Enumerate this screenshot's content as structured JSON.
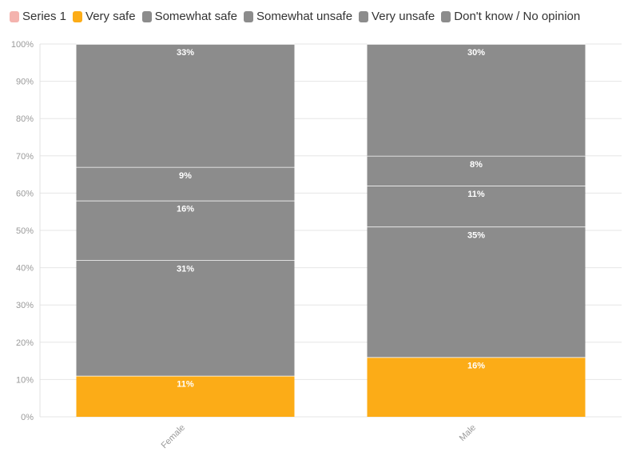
{
  "chart_data": {
    "type": "bar",
    "stacked": true,
    "categories": [
      "Female",
      "Male"
    ],
    "series": [
      {
        "name": "Series 1",
        "color": "#f4b3ae",
        "values": [
          0,
          0
        ]
      },
      {
        "name": "Very safe",
        "color": "#fcac17",
        "values": [
          11,
          16
        ]
      },
      {
        "name": "Somewhat safe",
        "color": "#8c8c8c",
        "values": [
          31,
          35
        ]
      },
      {
        "name": "Somewhat unsafe",
        "color": "#8c8c8c",
        "values": [
          16,
          11
        ]
      },
      {
        "name": "Very unsafe",
        "color": "#8c8c8c",
        "values": [
          9,
          8
        ]
      },
      {
        "name": "Don't know / No opinion",
        "color": "#8c8c8c",
        "values": [
          33,
          30
        ]
      }
    ],
    "data_labels": [
      [
        "",
        ""
      ],
      [
        "11%",
        "16%"
      ],
      [
        "31%",
        "35%"
      ],
      [
        "16%",
        "11%"
      ],
      [
        "9%",
        "8%"
      ],
      [
        "33%",
        "30%"
      ]
    ],
    "yticks": [
      "0%",
      "10%",
      "20%",
      "30%",
      "40%",
      "50%",
      "60%",
      "70%",
      "80%",
      "90%",
      "100%"
    ],
    "ylim": [
      0,
      100
    ],
    "grid": true,
    "legend_position": "top-left"
  }
}
